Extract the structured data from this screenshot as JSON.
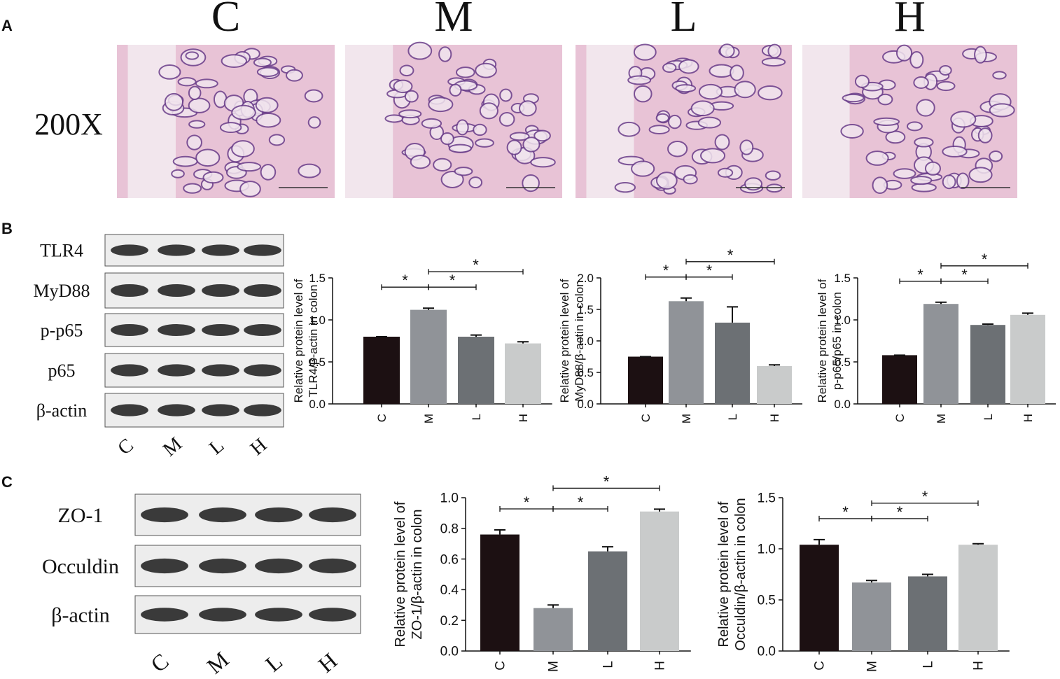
{
  "panel_labels": [
    "A",
    "B",
    "C"
  ],
  "panel_a": {
    "columns": [
      "C",
      "M",
      "L",
      "H"
    ],
    "magnification": "200X"
  },
  "panel_b_blot": {
    "rows": [
      "TLR4",
      "MyD88",
      "p-p65",
      "p65",
      "β-actin"
    ],
    "lanes": [
      "C",
      "M",
      "L",
      "H"
    ]
  },
  "panel_c_blot": {
    "rows": [
      "ZO-1",
      "Occuldin",
      "β-actin"
    ],
    "lanes": [
      "C",
      "M",
      "L",
      "H"
    ]
  },
  "chart_data": [
    {
      "type": "bar",
      "ylabel": [
        "Relative protein level of",
        "TLR4/β-actin in colon"
      ],
      "categories": [
        "C",
        "M",
        "L",
        "H"
      ],
      "values": [
        0.8,
        1.12,
        0.8,
        0.72
      ],
      "errors": [
        0,
        0.02,
        0.02,
        0.02
      ],
      "colors": [
        "#1c1012",
        "#909398",
        "#6c7074",
        "#c9cbcb"
      ],
      "ylim": [
        0,
        1.5
      ],
      "yticks": [
        {
          "value": 0,
          "label": "0.0"
        },
        0.5,
        {
          "value": 1,
          "label": "1.0"
        },
        1.5
      ],
      "annotations": [
        {
          "text": "*",
          "between": [
            "C",
            "M"
          ]
        },
        {
          "text": "*",
          "between": [
            "M",
            "L"
          ]
        },
        {
          "text": "*",
          "between": [
            "M",
            "H"
          ]
        }
      ]
    },
    {
      "type": "bar",
      "ylabel": [
        "Relative protein level of",
        "MyD88/β-actin in colon"
      ],
      "categories": [
        "C",
        "M",
        "L",
        "H"
      ],
      "values": [
        0.75,
        1.63,
        1.29,
        0.6
      ],
      "errors": [
        0,
        0.05,
        0.25,
        0.02
      ],
      "colors": [
        "#1c1012",
        "#909398",
        "#6c7074",
        "#c9cbcb"
      ],
      "ylim": [
        0,
        2
      ],
      "yticks": [
        {
          "value": 0,
          "label": "0.0"
        },
        0.5,
        {
          "value": 1,
          "label": "1.0"
        },
        1.5,
        {
          "value": 2,
          "label": "2.0"
        }
      ],
      "annotations": [
        {
          "text": "*",
          "between": [
            "C",
            "M"
          ]
        },
        {
          "text": "*",
          "between": [
            "M",
            "L"
          ]
        },
        {
          "text": "*",
          "between": [
            "M",
            "H"
          ]
        }
      ]
    },
    {
      "type": "bar",
      "ylabel": [
        "Relative protein level of",
        "p-p65/p65 in colon"
      ],
      "categories": [
        "C",
        "M",
        "L",
        "H"
      ],
      "values": [
        0.58,
        1.19,
        0.94,
        1.06
      ],
      "errors": [
        0,
        0.02,
        0.01,
        0.02
      ],
      "colors": [
        "#1c1012",
        "#909398",
        "#6c7074",
        "#c9cbcb"
      ],
      "ylim": [
        0,
        1.5
      ],
      "yticks": [
        {
          "value": 0,
          "label": "0.0"
        },
        0.5,
        {
          "value": 1,
          "label": "1.0"
        },
        1.5
      ],
      "annotations": [
        {
          "text": "*",
          "between": [
            "C",
            "M"
          ]
        },
        {
          "text": "*",
          "between": [
            "M",
            "L"
          ]
        },
        {
          "text": "*",
          "between": [
            "M",
            "H"
          ]
        }
      ]
    },
    {
      "type": "bar",
      "ylabel": [
        "Relative protein level of",
        "ZO-1/β-actin in colon"
      ],
      "categories": [
        "C",
        "M",
        "L",
        "H"
      ],
      "values": [
        0.76,
        0.28,
        0.65,
        0.91
      ],
      "errors": [
        0.03,
        0.02,
        0.03,
        0.015
      ],
      "colors": [
        "#1c1012",
        "#909398",
        "#6c7074",
        "#c9cbcb"
      ],
      "ylim": [
        0,
        1
      ],
      "yticks": [
        {
          "value": 0,
          "label": "0.0"
        },
        0.2,
        0.4,
        0.6,
        0.8,
        {
          "value": 1,
          "label": "1.0"
        }
      ],
      "annotations": [
        {
          "text": "*",
          "between": [
            "C",
            "M"
          ]
        },
        {
          "text": "*",
          "between": [
            "M",
            "L"
          ]
        },
        {
          "text": "*",
          "between": [
            "M",
            "H"
          ]
        }
      ]
    },
    {
      "type": "bar",
      "ylabel": [
        "Relative protein level of",
        "Occuldin/β-actin in colon"
      ],
      "categories": [
        "C",
        "M",
        "L",
        "H"
      ],
      "values": [
        1.04,
        0.67,
        0.73,
        1.04
      ],
      "errors": [
        0.05,
        0.02,
        0.02,
        0.01
      ],
      "colors": [
        "#1c1012",
        "#909398",
        "#6c7074",
        "#c9cbcb"
      ],
      "ylim": [
        0,
        1.5
      ],
      "yticks": [
        {
          "value": 0,
          "label": "0.0"
        },
        0.5,
        {
          "value": 1,
          "label": "1.0"
        },
        1.5
      ],
      "annotations": [
        {
          "text": "*",
          "between": [
            "C",
            "M"
          ]
        },
        {
          "text": "*",
          "between": [
            "M",
            "L"
          ]
        },
        {
          "text": "*",
          "between": [
            "M",
            "H"
          ]
        }
      ]
    }
  ]
}
